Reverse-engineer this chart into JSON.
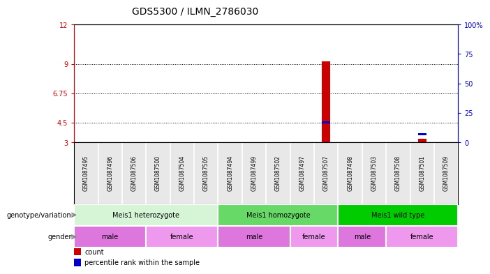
{
  "title": "GDS5300 / ILMN_2786030",
  "samples": [
    "GSM1087495",
    "GSM1087496",
    "GSM1087506",
    "GSM1087500",
    "GSM1087504",
    "GSM1087505",
    "GSM1087494",
    "GSM1087499",
    "GSM1087502",
    "GSM1087497",
    "GSM1087507",
    "GSM1087498",
    "GSM1087503",
    "GSM1087508",
    "GSM1087501",
    "GSM1087509"
  ],
  "red_values": [
    0,
    0,
    0,
    0,
    0,
    0,
    0,
    0,
    0,
    0,
    9.2,
    0,
    0,
    0,
    3.3,
    0
  ],
  "blue_values": [
    0,
    0,
    0,
    0,
    0,
    0,
    0,
    0,
    0,
    0,
    4.45,
    0,
    0,
    0,
    3.55,
    0
  ],
  "ylim_left": [
    3,
    12
  ],
  "yticks_left": [
    3,
    4.5,
    6.75,
    9,
    12
  ],
  "ytick_labels_left": [
    "3",
    "4.5",
    "6.75",
    "9",
    "12"
  ],
  "ytick_labels_right": [
    "0",
    "25",
    "50",
    "75",
    "100%"
  ],
  "dotted_yticks": [
    4.5,
    6.75,
    9
  ],
  "genotype_groups": [
    {
      "label": "Meis1 heterozygote",
      "start": 0,
      "end": 5,
      "color": "#d6f5d6"
    },
    {
      "label": "Meis1 homozygote",
      "start": 6,
      "end": 10,
      "color": "#66d966"
    },
    {
      "label": "Meis1 wild type",
      "start": 11,
      "end": 15,
      "color": "#00cc00"
    }
  ],
  "gender_groups": [
    {
      "label": "male",
      "start": 0,
      "end": 2,
      "color": "#dd77dd"
    },
    {
      "label": "female",
      "start": 3,
      "end": 5,
      "color": "#ee99ee"
    },
    {
      "label": "male",
      "start": 6,
      "end": 8,
      "color": "#dd77dd"
    },
    {
      "label": "female",
      "start": 9,
      "end": 10,
      "color": "#ee99ee"
    },
    {
      "label": "male",
      "start": 11,
      "end": 12,
      "color": "#dd77dd"
    },
    {
      "label": "female",
      "start": 13,
      "end": 15,
      "color": "#ee99ee"
    }
  ],
  "red_color": "#cc0000",
  "blue_color": "#0000cc",
  "title_fontsize": 10,
  "tick_fontsize": 7,
  "sample_fontsize": 5.5,
  "annot_fontsize": 7,
  "legend_fontsize": 7
}
